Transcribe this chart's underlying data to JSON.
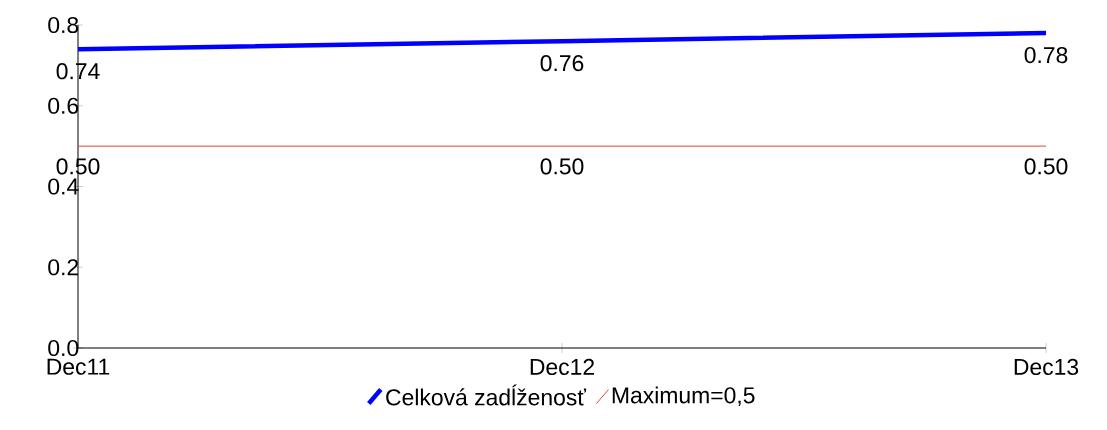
{
  "chart_data": {
    "type": "line",
    "categories": [
      "Dec11",
      "Dec12",
      "Dec13"
    ],
    "series": [
      {
        "name": "Celková zadĺženosť",
        "color": "#0000ff",
        "values": [
          0.74,
          0.76,
          0.78
        ],
        "value_labels": [
          "0.74",
          "0.76",
          "0.78"
        ]
      },
      {
        "name": "Maximum=0,5",
        "color": "#e8442e",
        "values": [
          0.5,
          0.5,
          0.5
        ],
        "value_labels": [
          "0.50",
          "0.50",
          "0.50"
        ]
      }
    ],
    "ylim": [
      0,
      0.8
    ],
    "yticks": [
      {
        "value": 0,
        "label": "0.0"
      },
      0.2,
      0.4,
      0.6,
      0.8
    ],
    "legend": "bottom"
  }
}
